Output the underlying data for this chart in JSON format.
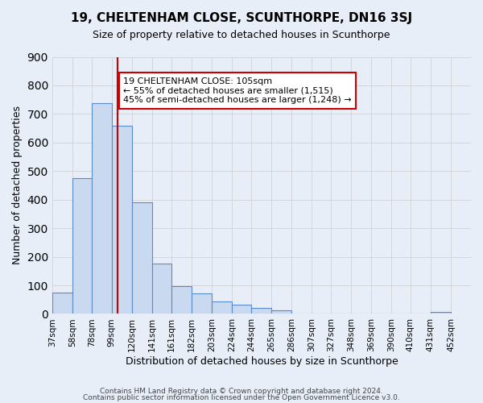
{
  "title": "19, CHELTENHAM CLOSE, SCUNTHORPE, DN16 3SJ",
  "subtitle": "Size of property relative to detached houses in Scunthorpe",
  "xlabel": "Distribution of detached houses by size in Scunthorpe",
  "ylabel": "Number of detached properties",
  "bar_values": [
    75,
    475,
    738,
    658,
    390,
    175,
    97,
    73,
    45,
    33,
    20,
    13,
    0,
    0,
    0,
    0,
    0,
    0,
    0,
    8
  ],
  "bin_labels": [
    "37sqm",
    "58sqm",
    "78sqm",
    "99sqm",
    "120sqm",
    "141sqm",
    "161sqm",
    "182sqm",
    "203sqm",
    "224sqm",
    "244sqm",
    "265sqm",
    "286sqm",
    "307sqm",
    "327sqm",
    "348sqm",
    "369sqm",
    "390sqm",
    "410sqm",
    "431sqm",
    "452sqm"
  ],
  "bin_edges": [
    37,
    58,
    78,
    99,
    120,
    141,
    161,
    182,
    203,
    224,
    244,
    265,
    286,
    307,
    327,
    348,
    369,
    390,
    410,
    431,
    452
  ],
  "bar_color": "#c9d9f0",
  "bar_edge_color": "#5b8cc8",
  "grid_color": "#cccccc",
  "background_color": "#e8eef8",
  "vline_x": 105,
  "vline_color": "#cc0000",
  "annotation_title": "19 CHELTENHAM CLOSE: 105sqm",
  "annotation_line1": "← 55% of detached houses are smaller (1,515)",
  "annotation_line2": "45% of semi-detached houses are larger (1,248) →",
  "annotation_box_edge": "#cc0000",
  "ylim": [
    0,
    900
  ],
  "yticks": [
    0,
    100,
    200,
    300,
    400,
    500,
    600,
    700,
    800,
    900
  ],
  "footer1": "Contains HM Land Registry data © Crown copyright and database right 2024.",
  "footer2": "Contains public sector information licensed under the Open Government Licence v3.0."
}
